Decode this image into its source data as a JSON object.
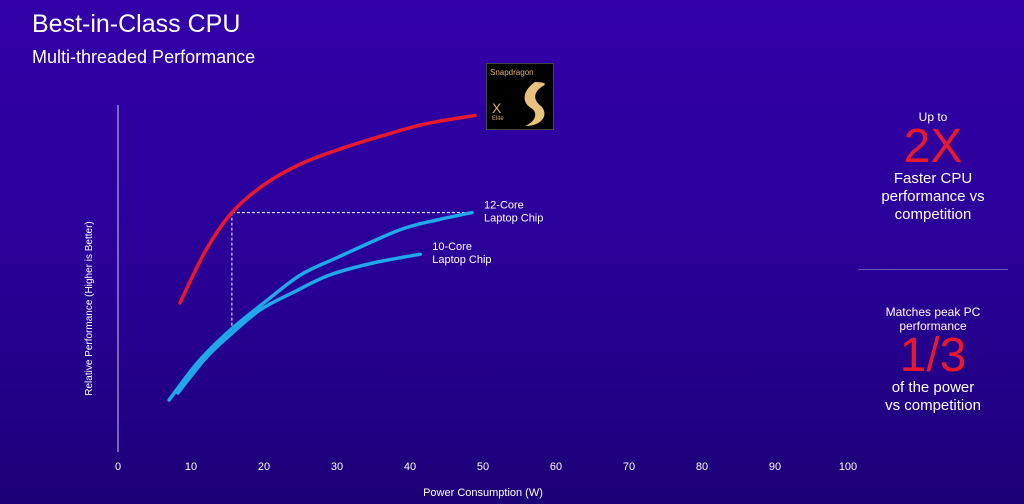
{
  "slide": {
    "title": "Best-in-Class CPU",
    "subtitle": "Multi-threaded Performance"
  },
  "logo": {
    "brand": "Snapdragon",
    "model": "X",
    "tier": "Elite"
  },
  "side_panel": {
    "top": {
      "prefix": "Up to",
      "highlight": "2X",
      "lines": [
        "Faster CPU",
        "performance vs",
        "competition"
      ]
    },
    "bottom": {
      "prefix_lines": [
        "Matches peak PC",
        "performance"
      ],
      "highlight": "1/3",
      "lines": [
        "of the power",
        "vs competition"
      ]
    },
    "highlight_color": "#e8192c"
  },
  "chart_data": {
    "type": "line",
    "xlabel": "Power Consumption (W)",
    "ylabel": "Relative Performance  (Higher is Better)",
    "xlim": [
      0,
      100
    ],
    "ylim": [
      0,
      100
    ],
    "xticks": [
      "0",
      "10",
      "20",
      "30",
      "40",
      "50",
      "60",
      "70",
      "80",
      "90",
      "100"
    ],
    "grid": false,
    "y_tick_labels_shown": false,
    "series": [
      {
        "name": "Snapdragon X Elite",
        "color": "#e8192c",
        "points": [
          [
            8.5,
            43
          ],
          [
            12,
            58
          ],
          [
            15.6,
            69
          ],
          [
            20,
            77
          ],
          [
            25,
            83
          ],
          [
            30,
            87
          ],
          [
            36,
            91
          ],
          [
            42,
            94.5
          ],
          [
            48.9,
            97
          ]
        ]
      },
      {
        "name": "12-Core Laptop Chip",
        "color": "#1fa8ea",
        "points": [
          [
            7,
            15
          ],
          [
            11,
            26
          ],
          [
            15.3,
            35
          ],
          [
            20,
            43
          ],
          [
            25,
            51
          ],
          [
            30,
            56
          ],
          [
            38.6,
            64
          ],
          [
            44,
            67
          ],
          [
            48.5,
            69
          ]
        ]
      },
      {
        "name": "10-Core Laptop Chip",
        "color": "#1fa8ea",
        "points": [
          [
            8.2,
            17
          ],
          [
            12,
            27
          ],
          [
            15.5,
            34
          ],
          [
            19.5,
            41
          ],
          [
            24,
            46
          ],
          [
            29,
            51
          ],
          [
            35,
            54.5
          ],
          [
            41.4,
            57
          ]
        ]
      }
    ],
    "annotations": [
      {
        "text": "12-Core Laptop Chip",
        "lines": [
          "12-Core",
          "Laptop Chip"
        ],
        "at": [
          48.5,
          69
        ]
      },
      {
        "text": "10-Core Laptop Chip",
        "lines": [
          "10-Core",
          "Laptop Chip"
        ],
        "at": [
          41.4,
          57
        ]
      }
    ],
    "reference_lines": [
      {
        "style": "dashed",
        "from": [
          15.6,
          69
        ],
        "to": [
          48.5,
          69
        ]
      },
      {
        "style": "dashed",
        "from": [
          15.6,
          69
        ],
        "to": [
          15.6,
          35
        ]
      }
    ]
  }
}
